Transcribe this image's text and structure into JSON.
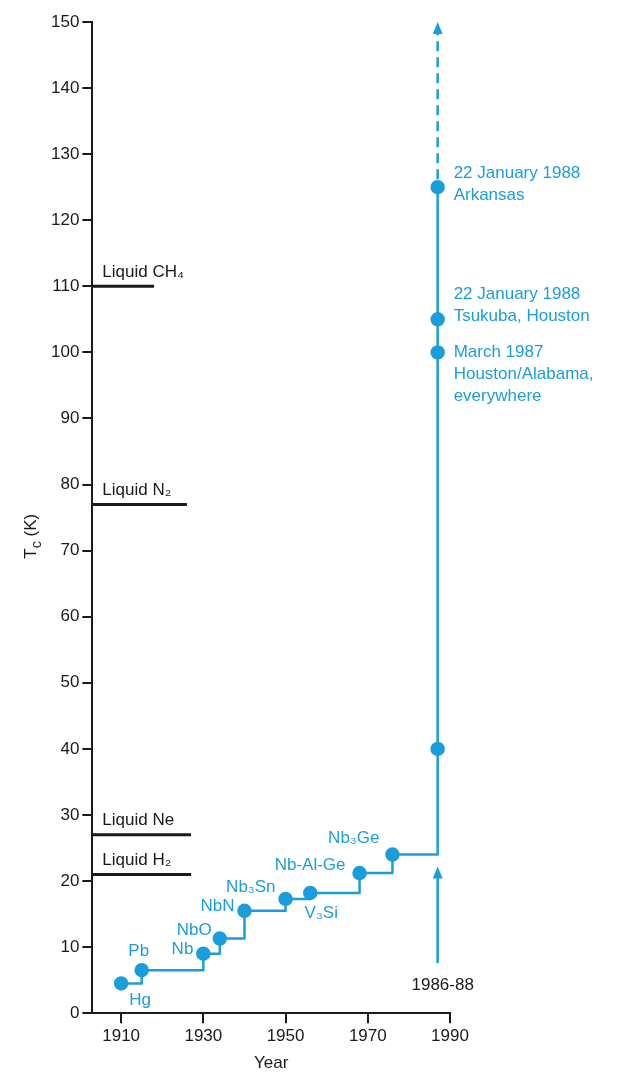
{
  "chart_data": {
    "type": "step",
    "xlabel": "Year",
    "ylabel": "T$_{c}$ (K)",
    "xlim": [
      1903,
      1990
    ],
    "xticks": [
      1910,
      1930,
      1950,
      1970,
      1990
    ],
    "ylim": [
      0,
      150
    ],
    "yticks": [
      0,
      10,
      20,
      30,
      40,
      50,
      60,
      70,
      80,
      90,
      100,
      110,
      120,
      130,
      140,
      150
    ],
    "grid": false,
    "legend": "bottom left",
    "series": [
      {
        "color": "#1b9ddb",
        "marker": "circle",
        "x": [
          1910,
          1915,
          1930,
          1934,
          1940,
          1950,
          1956,
          1968,
          1976,
          1987,
          1987,
          1987,
          1987
        ],
        "values": [
          4.5,
          6.5,
          9,
          11.3,
          15.5,
          17.3,
          18.2,
          21.2,
          24,
          40,
          100,
          105,
          125
        ]
      },
      {
        "type": "line",
        "name": "Liquid CH₄",
        "color": "#1a1a1a",
        "marker": "none",
        "x": [
          1903,
          1918
        ],
        "values": [
          110,
          110
        ]
      },
      {
        "type": "line",
        "name": "Liquid N₂",
        "color": "#1a1a1a",
        "marker": "none",
        "x": [
          1903,
          1926
        ],
        "values": [
          77,
          77
        ]
      },
      {
        "type": "line",
        "name": "Liquid Ne",
        "color": "#1a1a1a",
        "marker": "none",
        "x": [
          1903,
          1927
        ],
        "values": [
          27,
          27
        ]
      },
      {
        "type": "line",
        "name": "Liquid H₂",
        "color": "#1a1a1a",
        "marker": "none",
        "x": [
          1903,
          1927
        ],
        "values": [
          21,
          21
        ]
      }
    ],
    "annotations": [
      {
        "text": "Hg",
        "x": 1910,
        "y": 4.5
      },
      {
        "text": "Pb",
        "x": 1915,
        "y": 6.5
      },
      {
        "text": "Nb",
        "x": 1930,
        "y": 9
      },
      {
        "text": "NbO",
        "x": 1934,
        "y": 11.3
      },
      {
        "text": "NbN",
        "x": 1940,
        "y": 15.5
      },
      {
        "text": "Nb₃Sn",
        "x": 1950,
        "y": 17.3
      },
      {
        "text": "V₃Si",
        "x": 1956,
        "y": 18.2
      },
      {
        "text": "Nb-Al-Ge",
        "x": 1968,
        "y": 21.2
      },
      {
        "text": "Nb₃Ge",
        "x": 1976,
        "y": 24
      },
      {
        "text": "22 January 1988\nArkansas",
        "x": 1987,
        "y": 125
      },
      {
        "text": "22 January 1988\nTsukuba, Houston",
        "x": 1987,
        "y": 105
      },
      {
        "text": "March 1987\nHouston/Alabama,\neverywhere",
        "x": 1987,
        "y": 100
      },
      "1986-88"
    ]
  }
}
